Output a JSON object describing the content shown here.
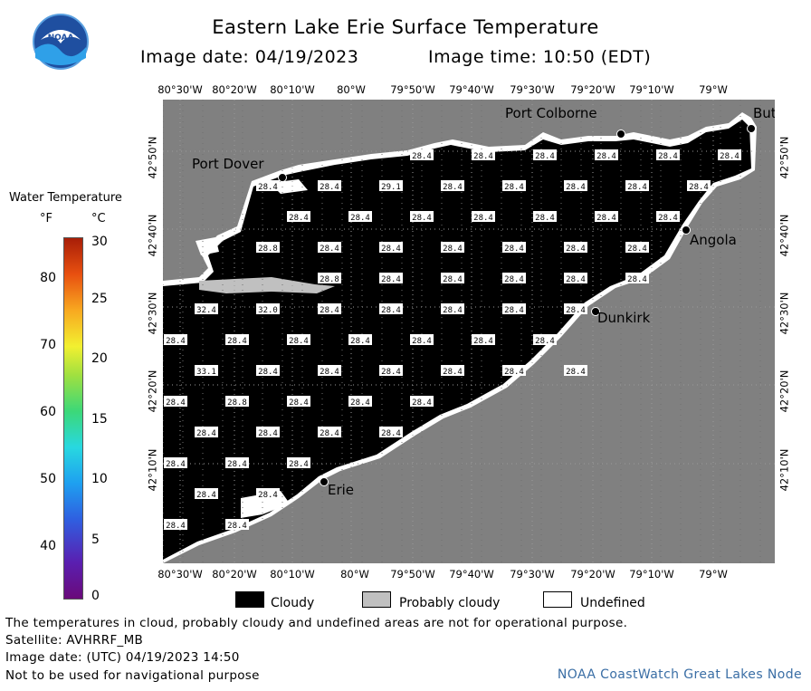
{
  "header": {
    "title": "Eastern Lake Erie Surface Temperature",
    "image_date": "Image date: 04/19/2023",
    "image_time": "Image time: 10:50 (EDT)"
  },
  "logo": {
    "text": "NOAA",
    "icon": "noaa-logo-icon"
  },
  "colorbar": {
    "title": "Water Temperature",
    "unit_f": "°F",
    "unit_c": "°C",
    "ticks_f": [
      "80",
      "70",
      "60",
      "50",
      "40"
    ],
    "ticks_c": [
      "30",
      "25",
      "20",
      "15",
      "10",
      "5",
      "0"
    ],
    "range_c": [
      0,
      30
    ]
  },
  "axes": {
    "longitudes": [
      "80°30'W",
      "80°20'W",
      "80°10'W",
      "80°W",
      "79°50'W",
      "79°40'W",
      "79°30'W",
      "79°20'W",
      "79°10'W",
      "79°W"
    ],
    "latitudes": [
      "42°50'N",
      "42°40'N",
      "42°30'N",
      "42°20'N",
      "42°10'N"
    ]
  },
  "places": [
    "Port Colborne",
    "But",
    "Port Dover",
    "Angola",
    "Dunkirk",
    "Erie"
  ],
  "temperatures": [
    [
      "28.4",
      "28.4",
      "28.4",
      "28.4",
      "28.4",
      "28.4"
    ],
    [
      "28.4",
      "28.4",
      "29.1",
      "28.4",
      "28.4",
      "28.4",
      "28.4",
      "28.4"
    ],
    [
      "28.4",
      "28.4",
      "28.4",
      "28.4",
      "28.4",
      "28.4",
      "28.4"
    ],
    [
      "28.8",
      "28.4",
      "28.4",
      "28.4",
      "28.4",
      "28.4",
      "28.4"
    ],
    [
      "28.8",
      "28.4",
      "28.4",
      "28.4",
      "28.4",
      "28.4"
    ],
    [
      "32.4",
      "32.0",
      "28.4",
      "28.4",
      "28.4",
      "28.4",
      "28.4"
    ],
    [
      "28.4",
      "28.4",
      "28.4",
      "28.4",
      "28.4",
      "28.4",
      "28.4"
    ],
    [
      "33.1",
      "28.4",
      "28.4",
      "28.4",
      "28.4",
      "28.4",
      "28.4"
    ],
    [
      "28.4",
      "28.8",
      "28.4",
      "28.4",
      "28.4"
    ],
    [
      "28.4",
      "28.4",
      "28.4",
      "28.4"
    ],
    [
      "28.4",
      "28.4",
      "28.4"
    ],
    [
      "28.4",
      "28.4"
    ],
    [
      "28.4",
      "28.4"
    ]
  ],
  "legend": {
    "cloudy": "Cloudy",
    "probably_cloudy": "Probably cloudy",
    "undefined": "Undefined",
    "colors": {
      "cloudy": "#000000",
      "probably_cloudy": "#c0c0c0",
      "undefined": "#ffffff",
      "land": "#808080"
    }
  },
  "footer": {
    "disclaimer": "The temperatures in cloud, probably cloudy and undefined areas are not for operational purpose.",
    "satellite": "Satellite: AVHRRF_MB",
    "utc_date": "Image date: (UTC) 04/19/2023  14:50",
    "navigation": "Not to be used for navigational purpose",
    "node": "NOAA CoastWatch Great Lakes Node"
  }
}
